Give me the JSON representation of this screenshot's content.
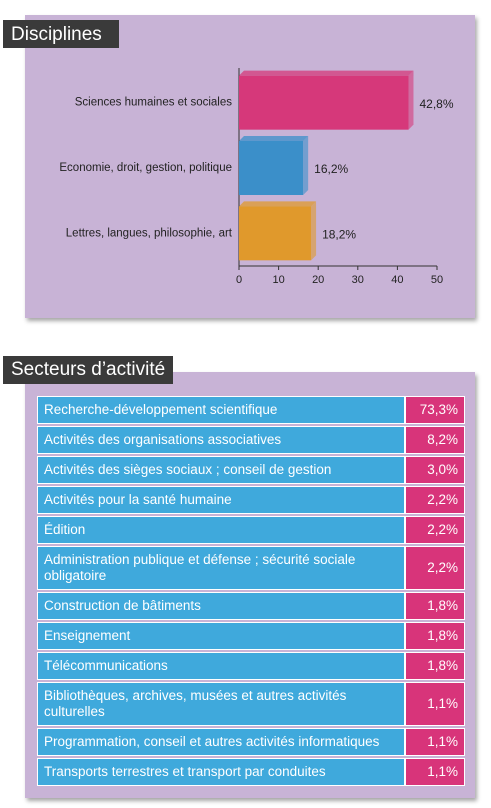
{
  "chart_data": {
    "type": "barh",
    "title": "Disciplines",
    "categories": [
      "Sciences humaines et sociales",
      "Economie, droit, gestion, politique",
      "Lettres, langues, philosophie, art"
    ],
    "values": [
      42.8,
      16.2,
      18.2
    ],
    "value_labels": [
      "42,8%",
      "16,2%",
      "18,2%"
    ],
    "colors": [
      "#d6387a",
      "#3b8fc9",
      "#e0992c"
    ],
    "xlim": [
      0,
      50
    ],
    "xticks": [
      0,
      10,
      20,
      30,
      40,
      50
    ],
    "grid": false
  },
  "table": {
    "title": "Secteurs d’activité",
    "rows": [
      [
        "Recherche-développement scientifique",
        "73,3%"
      ],
      [
        "Activités des organisations associatives",
        "8,2%"
      ],
      [
        "Activités des sièges sociaux ; conseil de gestion",
        "3,0%"
      ],
      [
        "Activités pour la santé humaine",
        "2,2%"
      ],
      [
        "Édition",
        "2,2%"
      ],
      [
        "Administration publique et défense ; sécurité sociale obligatoire",
        "2,2%"
      ],
      [
        "Construction de bâtiments",
        "1,8%"
      ],
      [
        "Enseignement",
        "1,8%"
      ],
      [
        "Télécommunications",
        "1,8%"
      ],
      [
        "Bibliothèques, archives, musées et autres activités culturelles",
        "1,1%"
      ],
      [
        "Programmation, conseil et autres activités informatiques",
        "1,1%"
      ],
      [
        "Transports terrestres et transport par conduites",
        "1,1%"
      ]
    ]
  }
}
